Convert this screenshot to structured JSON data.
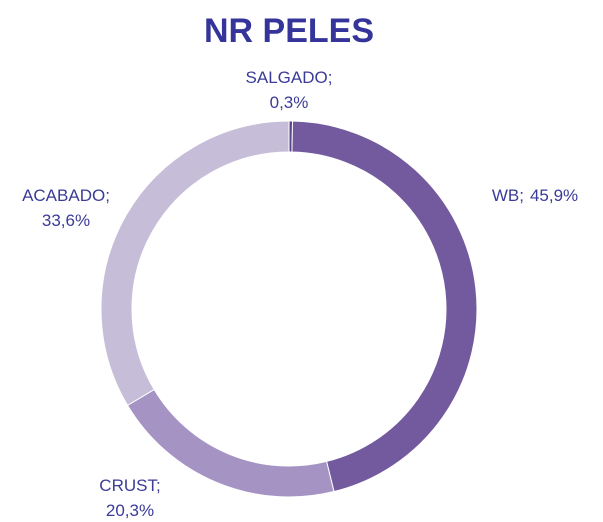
{
  "chart_data": {
    "type": "donut",
    "title": "NR PELES",
    "categories": [
      "SALGADO",
      "WB",
      "CRUST",
      "ACABADO"
    ],
    "values": [
      0.3,
      45.9,
      20.3,
      33.6
    ],
    "value_labels": [
      "0,3%",
      "45,9%",
      "20,3%",
      "33,6%"
    ],
    "label_separator": ";",
    "colors": [
      "#5e4488",
      "#735a9e",
      "#a593c4",
      "#c6bdd9"
    ],
    "legend": false
  }
}
